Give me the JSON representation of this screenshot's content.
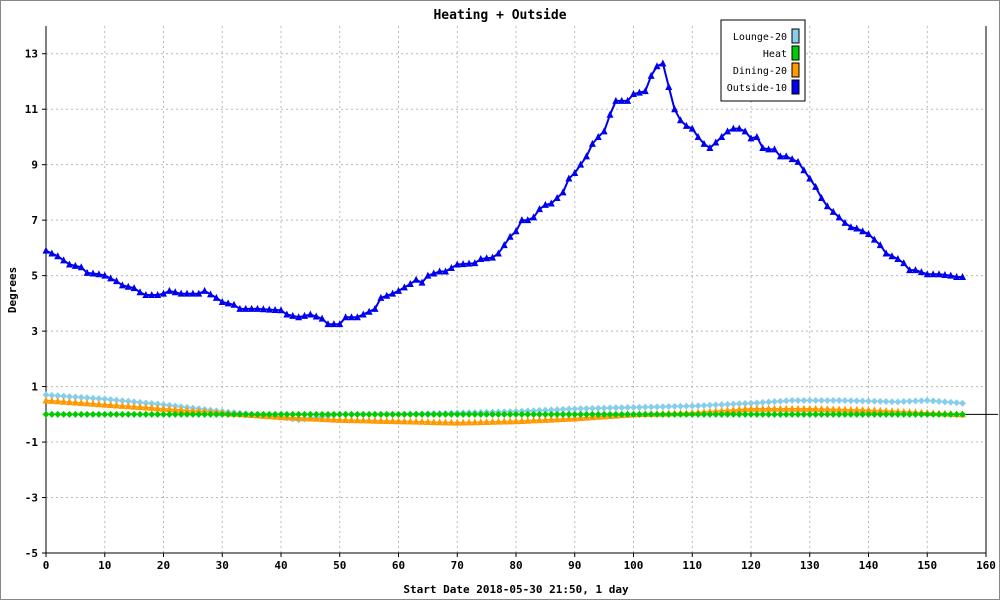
{
  "chart_data": {
    "type": "line",
    "title": "Heating + Outside",
    "xlabel": "Start Date 2018-05-30 21:50, 1 day",
    "ylabel": "Degrees",
    "xlim": [
      0,
      160
    ],
    "ylim": [
      -5,
      14
    ],
    "xticks": [
      0,
      10,
      20,
      30,
      40,
      50,
      60,
      70,
      80,
      90,
      100,
      110,
      120,
      130,
      140,
      150,
      160
    ],
    "yticks": [
      -5,
      -3,
      -1,
      1,
      3,
      5,
      7,
      9,
      11,
      13
    ],
    "grid": true,
    "legend_position": "top-right",
    "series": [
      {
        "name": "Lounge-20",
        "color": "#87ceeb",
        "marker": "diamond",
        "points": [
          [
            0,
            0.7
          ],
          [
            10,
            0.55
          ],
          [
            20,
            0.35
          ],
          [
            30,
            0.1
          ],
          [
            40,
            -0.1
          ],
          [
            43,
            -0.2
          ],
          [
            50,
            0.0
          ],
          [
            60,
            0.0
          ],
          [
            70,
            0.05
          ],
          [
            80,
            0.1
          ],
          [
            90,
            0.2
          ],
          [
            100,
            0.25
          ],
          [
            110,
            0.3
          ],
          [
            120,
            0.4
          ],
          [
            127,
            0.5
          ],
          [
            135,
            0.5
          ],
          [
            145,
            0.45
          ],
          [
            150,
            0.5
          ],
          [
            156,
            0.4
          ]
        ]
      },
      {
        "name": "Heat",
        "color": "#00cc00",
        "marker": "diamond",
        "points": [
          [
            0,
            0.0
          ],
          [
            156,
            0.0
          ]
        ]
      },
      {
        "name": "Dining-20",
        "color": "#ff9900",
        "marker": "triangle",
        "points": [
          [
            0,
            0.5
          ],
          [
            10,
            0.35
          ],
          [
            20,
            0.2
          ],
          [
            30,
            0.05
          ],
          [
            40,
            -0.1
          ],
          [
            50,
            -0.2
          ],
          [
            60,
            -0.25
          ],
          [
            70,
            -0.3
          ],
          [
            80,
            -0.25
          ],
          [
            90,
            -0.15
          ],
          [
            100,
            0.0
          ],
          [
            110,
            0.05
          ],
          [
            120,
            0.2
          ],
          [
            130,
            0.2
          ],
          [
            140,
            0.15
          ],
          [
            150,
            0.05
          ],
          [
            156,
            0.0
          ]
        ]
      },
      {
        "name": "Outside-10",
        "color": "#0000ee",
        "marker": "triangle",
        "points": [
          [
            0,
            5.9
          ],
          [
            2,
            5.7
          ],
          [
            4,
            5.4
          ],
          [
            6,
            5.3
          ],
          [
            7,
            5.1
          ],
          [
            9,
            5.05
          ],
          [
            10,
            5.0
          ],
          [
            12,
            4.8
          ],
          [
            13,
            4.65
          ],
          [
            15,
            4.55
          ],
          [
            16,
            4.4
          ],
          [
            17,
            4.3
          ],
          [
            19,
            4.3
          ],
          [
            20,
            4.35
          ],
          [
            21,
            4.45
          ],
          [
            23,
            4.35
          ],
          [
            26,
            4.35
          ],
          [
            27,
            4.45
          ],
          [
            29,
            4.2
          ],
          [
            30,
            4.05
          ],
          [
            32,
            3.95
          ],
          [
            33,
            3.8
          ],
          [
            36,
            3.8
          ],
          [
            40,
            3.75
          ],
          [
            41,
            3.6
          ],
          [
            43,
            3.5
          ],
          [
            45,
            3.6
          ],
          [
            47,
            3.45
          ],
          [
            48,
            3.25
          ],
          [
            50,
            3.25
          ],
          [
            51,
            3.5
          ],
          [
            53,
            3.5
          ],
          [
            55,
            3.7
          ],
          [
            56,
            3.8
          ],
          [
            57,
            4.2
          ],
          [
            59,
            4.35
          ],
          [
            60,
            4.45
          ],
          [
            62,
            4.7
          ],
          [
            63,
            4.85
          ],
          [
            64,
            4.75
          ],
          [
            65,
            5.0
          ],
          [
            67,
            5.15
          ],
          [
            68,
            5.15
          ],
          [
            70,
            5.4
          ],
          [
            73,
            5.45
          ],
          [
            74,
            5.6
          ],
          [
            76,
            5.65
          ],
          [
            77,
            5.8
          ],
          [
            78,
            6.1
          ],
          [
            79,
            6.4
          ],
          [
            80,
            6.6
          ],
          [
            81,
            7.0
          ],
          [
            82,
            7.0
          ],
          [
            83,
            7.1
          ],
          [
            84,
            7.4
          ],
          [
            85,
            7.55
          ],
          [
            86,
            7.6
          ],
          [
            87,
            7.8
          ],
          [
            88,
            8.0
          ],
          [
            89,
            8.5
          ],
          [
            90,
            8.7
          ],
          [
            91,
            9.0
          ],
          [
            92,
            9.3
          ],
          [
            93,
            9.75
          ],
          [
            94,
            10.0
          ],
          [
            95,
            10.2
          ],
          [
            96,
            10.8
          ],
          [
            97,
            11.3
          ],
          [
            99,
            11.3
          ],
          [
            100,
            11.55
          ],
          [
            101,
            11.6
          ],
          [
            102,
            11.65
          ],
          [
            103,
            12.2
          ],
          [
            104,
            12.55
          ],
          [
            105,
            12.65
          ],
          [
            106,
            11.8
          ],
          [
            107,
            11.0
          ],
          [
            108,
            10.6
          ],
          [
            109,
            10.4
          ],
          [
            110,
            10.3
          ],
          [
            111,
            10.0
          ],
          [
            112,
            9.75
          ],
          [
            113,
            9.6
          ],
          [
            114,
            9.8
          ],
          [
            115,
            10.0
          ],
          [
            116,
            10.2
          ],
          [
            117,
            10.3
          ],
          [
            118,
            10.3
          ],
          [
            119,
            10.2
          ],
          [
            120,
            9.95
          ],
          [
            121,
            10.0
          ],
          [
            122,
            9.6
          ],
          [
            123,
            9.55
          ],
          [
            124,
            9.55
          ],
          [
            125,
            9.3
          ],
          [
            126,
            9.3
          ],
          [
            127,
            9.2
          ],
          [
            128,
            9.1
          ],
          [
            129,
            8.8
          ],
          [
            130,
            8.5
          ],
          [
            131,
            8.2
          ],
          [
            132,
            7.8
          ],
          [
            133,
            7.5
          ],
          [
            134,
            7.3
          ],
          [
            135,
            7.1
          ],
          [
            136,
            6.9
          ],
          [
            137,
            6.75
          ],
          [
            138,
            6.7
          ],
          [
            139,
            6.6
          ],
          [
            140,
            6.5
          ],
          [
            141,
            6.3
          ],
          [
            142,
            6.1
          ],
          [
            143,
            5.8
          ],
          [
            145,
            5.6
          ],
          [
            146,
            5.45
          ],
          [
            147,
            5.2
          ],
          [
            148,
            5.2
          ],
          [
            150,
            5.05
          ],
          [
            152,
            5.05
          ],
          [
            154,
            5.0
          ],
          [
            155,
            4.95
          ],
          [
            156,
            4.95
          ]
        ]
      }
    ]
  }
}
